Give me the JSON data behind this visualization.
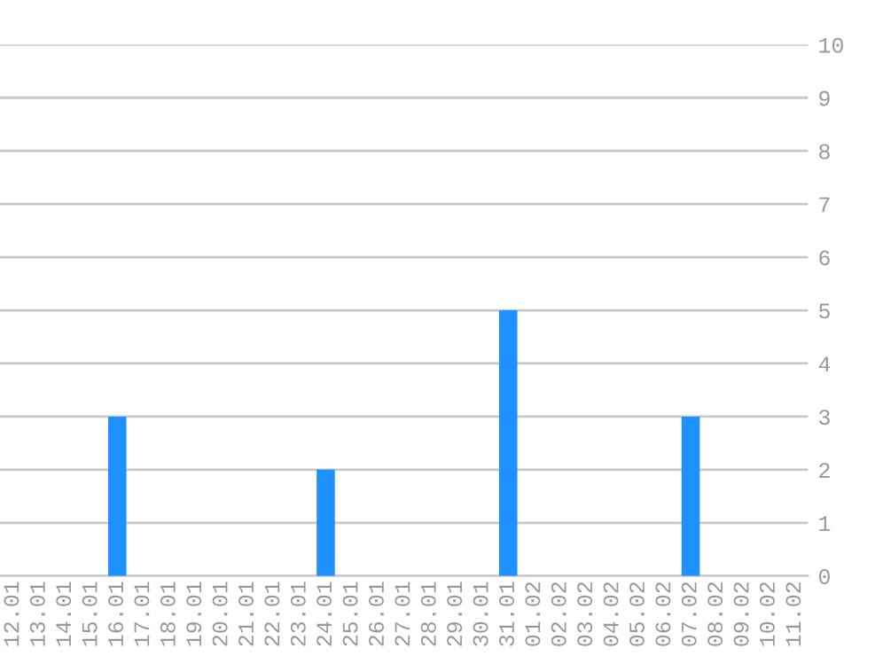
{
  "chart_data": {
    "type": "bar",
    "categories": [
      "12.01",
      "13.01",
      "14.01",
      "15.01",
      "16.01",
      "17.01",
      "18.01",
      "19.01",
      "20.01",
      "21.01",
      "22.01",
      "23.01",
      "24.01",
      "25.01",
      "26.01",
      "27.01",
      "28.01",
      "29.01",
      "30.01",
      "31.01",
      "01.02",
      "02.02",
      "03.02",
      "04.02",
      "05.02",
      "06.02",
      "07.02",
      "08.02",
      "09.02",
      "10.02",
      "11.02"
    ],
    "values": [
      0,
      0,
      0,
      0,
      3,
      0,
      0,
      0,
      0,
      0,
      0,
      0,
      2,
      0,
      0,
      0,
      0,
      0,
      0,
      5,
      0,
      0,
      0,
      0,
      0,
      0,
      3,
      0,
      0,
      0,
      0
    ],
    "color": "#1e90ff",
    "ylim": [
      0,
      10
    ],
    "yticks": [
      0,
      1,
      2,
      3,
      4,
      5,
      6,
      7,
      8,
      9,
      10
    ],
    "grid": "y",
    "legend": false
  }
}
